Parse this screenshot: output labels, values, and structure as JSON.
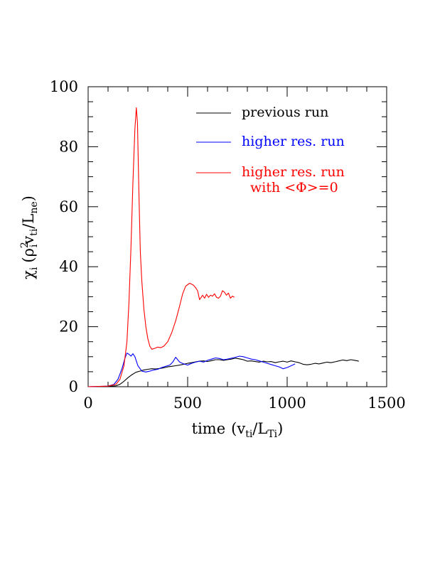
{
  "chart_data": {
    "type": "line",
    "title": "",
    "xlabel": {
      "main": "time",
      "open": "(v",
      "sub1": "ti",
      "mid": "/L",
      "sub2": "Ti",
      "close": ")"
    },
    "ylabel": {
      "chi": "χ",
      "chi_sub": "i",
      "open": "(ρ",
      "rho_sup": "2",
      "rho_sub": "i",
      "v": "v",
      "v_sub": "ti",
      "slash": "/L",
      "l_sub": "ne",
      "close": ")"
    },
    "xlim": [
      0,
      1500
    ],
    "ylim": [
      0,
      100
    ],
    "xticks": [
      {
        "value": 0,
        "label": "0"
      },
      {
        "value": 500,
        "label": "500"
      },
      {
        "value": 1000,
        "label": "1000"
      },
      {
        "value": 1500,
        "label": "1500"
      }
    ],
    "yticks": [
      {
        "value": 0,
        "label": "0"
      },
      {
        "value": 20,
        "label": "20"
      },
      {
        "value": 40,
        "label": "40"
      },
      {
        "value": 60,
        "label": "60"
      },
      {
        "value": 80,
        "label": "80"
      },
      {
        "value": 100,
        "label": "100"
      }
    ],
    "legend_placement": "top-right",
    "grid": false,
    "series": [
      {
        "name": "previous run",
        "color": "#000000",
        "x": [
          0,
          100,
          140,
          160,
          180,
          200,
          220,
          240,
          260,
          280,
          300,
          320,
          340,
          360,
          380,
          400,
          420,
          440,
          460,
          480,
          500,
          520,
          540,
          560,
          580,
          600,
          620,
          640,
          660,
          680,
          700,
          720,
          740,
          760,
          780,
          800,
          820,
          840,
          860,
          880,
          900,
          920,
          940,
          960,
          980,
          1000,
          1020,
          1040,
          1060,
          1080,
          1100,
          1120,
          1140,
          1160,
          1180,
          1200,
          1220,
          1240,
          1260,
          1280,
          1300,
          1320,
          1340,
          1360
        ],
        "y": [
          0,
          0.1,
          0.3,
          0.8,
          1.8,
          3,
          4,
          4.8,
          5.2,
          5.6,
          5.8,
          6,
          5.9,
          6.1,
          6.3,
          6.6,
          6.8,
          7,
          7.2,
          7.5,
          7.8,
          8,
          8.3,
          8.5,
          8.6,
          8.4,
          8.7,
          9,
          9,
          8.8,
          9,
          9.2,
          9.5,
          9.3,
          9,
          8.5,
          8.6,
          8.4,
          8.2,
          8.5,
          8.3,
          8.4,
          8.0,
          8.3,
          8.5,
          8.2,
          8.6,
          8.3,
          8.0,
          7.5,
          7.3,
          7.5,
          7.8,
          7.6,
          7.9,
          8.2,
          8.0,
          8.3,
          8.6,
          8.9,
          8.7,
          9.0,
          8.8,
          8.5
        ]
      },
      {
        "name": "higher res. run",
        "color": "#0000ff",
        "x": [
          0,
          100,
          130,
          150,
          170,
          185,
          195,
          205,
          215,
          225,
          235,
          250,
          270,
          290,
          310,
          330,
          350,
          370,
          390,
          410,
          425,
          440,
          460,
          480,
          500,
          520,
          540,
          560,
          580,
          600,
          620,
          640,
          660,
          680,
          700,
          720,
          740,
          760,
          780,
          800,
          820,
          840,
          860,
          880,
          900,
          920,
          940,
          960,
          980,
          1000,
          1020,
          1040
        ],
        "y": [
          0,
          0.2,
          0.8,
          2.5,
          6,
          9.5,
          11.2,
          10.8,
          10.2,
          11,
          10,
          7,
          5.2,
          4.9,
          5.2,
          5.6,
          5.8,
          6.4,
          6.8,
          7.2,
          8.2,
          9.8,
          8.2,
          7.6,
          7.2,
          7.8,
          8.2,
          8.5,
          8.2,
          8.8,
          9.2,
          9.6,
          9.4,
          9.0,
          9.2,
          9.5,
          9.8,
          10.2,
          10.0,
          9.6,
          9.2,
          9.0,
          8.6,
          8.2,
          7.8,
          7.4,
          7.0,
          6.6,
          6.0,
          6.4,
          7.0,
          7.6
        ]
      },
      {
        "name": "higher res. run",
        "name_line2": "with <Φ>=0",
        "color": "#ff0000",
        "x": [
          0,
          100,
          140,
          160,
          180,
          195,
          205,
          215,
          225,
          235,
          242,
          248,
          255,
          262,
          270,
          280,
          290,
          300,
          310,
          320,
          335,
          350,
          365,
          380,
          400,
          420,
          440,
          460,
          475,
          490,
          500,
          510,
          520,
          530,
          540,
          550,
          560,
          565,
          575,
          585,
          595,
          605,
          615,
          625,
          635,
          645,
          655,
          665,
          675,
          685,
          695,
          705,
          715,
          725,
          735
        ],
        "y": [
          0,
          0.2,
          0.8,
          2.5,
          7,
          15,
          28,
          46,
          68,
          86,
          93,
          88,
          65,
          45,
          35,
          26,
          20,
          16,
          13.5,
          12.5,
          12.8,
          13.2,
          13.0,
          13.5,
          15,
          18,
          22,
          27,
          31,
          33.5,
          34,
          34.5,
          34.2,
          33.8,
          33,
          32,
          29,
          29.5,
          30.5,
          29.5,
          30.8,
          29.8,
          30.5,
          30.2,
          31,
          29.8,
          29.5,
          30.2,
          32,
          31.5,
          30.5,
          31.2,
          29.5,
          30.2,
          29.8
        ]
      }
    ]
  }
}
